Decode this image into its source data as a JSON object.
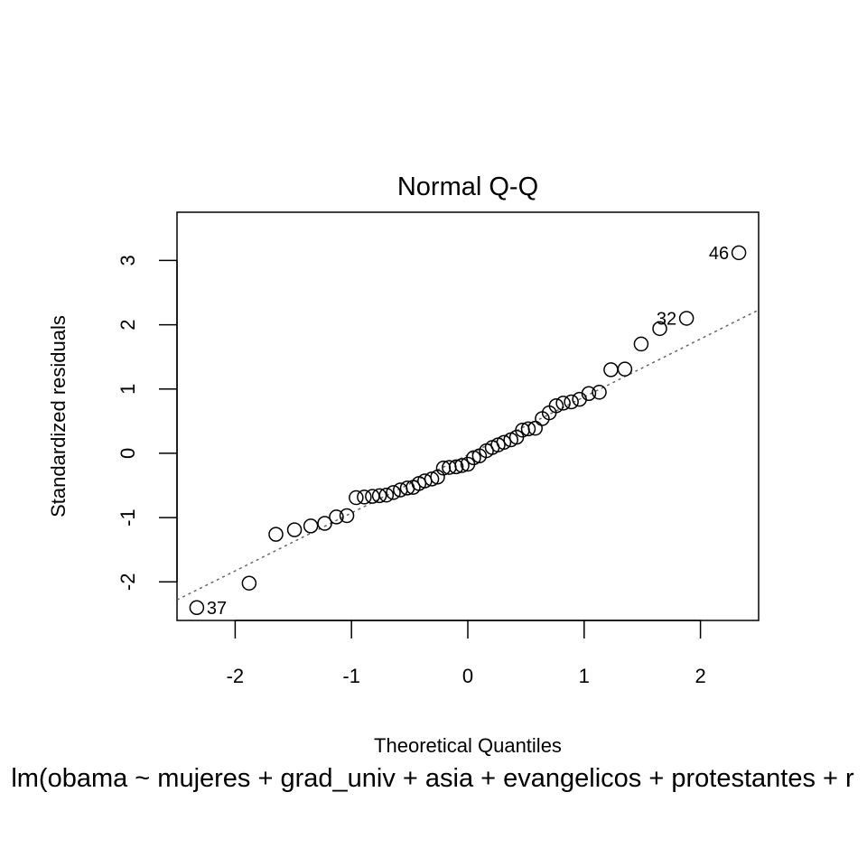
{
  "chart_data": {
    "type": "scatter",
    "title": "Normal Q-Q",
    "xlabel": "Theoretical Quantiles",
    "ylabel": "Standardized residuals",
    "subtitle": "lm(obama ~ mujeres + grad_univ + asia + evangelicos + protestantes + r",
    "xlim": [
      -2.5,
      2.5
    ],
    "ylim": [
      -2.6,
      3.75
    ],
    "x_ticks": [
      -2,
      -1,
      0,
      1,
      2
    ],
    "y_ticks": [
      -2,
      -1,
      0,
      1,
      2,
      3
    ],
    "grid": false,
    "reference_line": {
      "style": "dotted",
      "color": "#666666",
      "x": [
        -2.5,
        2.5
      ],
      "y": [
        -2.28,
        2.23
      ]
    },
    "points": [
      {
        "x": -2.33,
        "y": -2.4
      },
      {
        "x": -1.88,
        "y": -2.02
      },
      {
        "x": -1.65,
        "y": -1.26
      },
      {
        "x": -1.49,
        "y": -1.19
      },
      {
        "x": -1.35,
        "y": -1.13
      },
      {
        "x": -1.23,
        "y": -1.09
      },
      {
        "x": -1.13,
        "y": -0.99
      },
      {
        "x": -1.04,
        "y": -0.97
      },
      {
        "x": -0.96,
        "y": -0.69
      },
      {
        "x": -0.89,
        "y": -0.68
      },
      {
        "x": -0.82,
        "y": -0.67
      },
      {
        "x": -0.76,
        "y": -0.66
      },
      {
        "x": -0.7,
        "y": -0.65
      },
      {
        "x": -0.64,
        "y": -0.61
      },
      {
        "x": -0.58,
        "y": -0.57
      },
      {
        "x": -0.52,
        "y": -0.54
      },
      {
        "x": -0.47,
        "y": -0.53
      },
      {
        "x": -0.42,
        "y": -0.47
      },
      {
        "x": -0.37,
        "y": -0.43
      },
      {
        "x": -0.31,
        "y": -0.4
      },
      {
        "x": -0.26,
        "y": -0.37
      },
      {
        "x": -0.21,
        "y": -0.23
      },
      {
        "x": -0.16,
        "y": -0.22
      },
      {
        "x": -0.1,
        "y": -0.21
      },
      {
        "x": -0.05,
        "y": -0.19
      },
      {
        "x": 0.0,
        "y": -0.17
      },
      {
        "x": 0.05,
        "y": -0.07
      },
      {
        "x": 0.1,
        "y": -0.04
      },
      {
        "x": 0.16,
        "y": 0.04
      },
      {
        "x": 0.21,
        "y": 0.09
      },
      {
        "x": 0.26,
        "y": 0.13
      },
      {
        "x": 0.31,
        "y": 0.17
      },
      {
        "x": 0.37,
        "y": 0.21
      },
      {
        "x": 0.42,
        "y": 0.25
      },
      {
        "x": 0.47,
        "y": 0.36
      },
      {
        "x": 0.52,
        "y": 0.38
      },
      {
        "x": 0.58,
        "y": 0.39
      },
      {
        "x": 0.64,
        "y": 0.54
      },
      {
        "x": 0.7,
        "y": 0.63
      },
      {
        "x": 0.76,
        "y": 0.74
      },
      {
        "x": 0.82,
        "y": 0.78
      },
      {
        "x": 0.89,
        "y": 0.8
      },
      {
        "x": 0.96,
        "y": 0.84
      },
      {
        "x": 1.04,
        "y": 0.93
      },
      {
        "x": 1.13,
        "y": 0.95
      },
      {
        "x": 1.23,
        "y": 1.3
      },
      {
        "x": 1.35,
        "y": 1.31
      },
      {
        "x": 1.49,
        "y": 1.7
      },
      {
        "x": 1.65,
        "y": 1.94
      },
      {
        "x": 1.88,
        "y": 2.1
      },
      {
        "x": 2.33,
        "y": 3.12
      }
    ],
    "annotations": [
      {
        "text": "46",
        "x": 2.33,
        "y": 3.12,
        "side": "left"
      },
      {
        "text": "32",
        "x": 1.88,
        "y": 2.1,
        "side": "left"
      },
      {
        "text": "37",
        "x": -2.33,
        "y": -2.4,
        "side": "right"
      }
    ]
  }
}
